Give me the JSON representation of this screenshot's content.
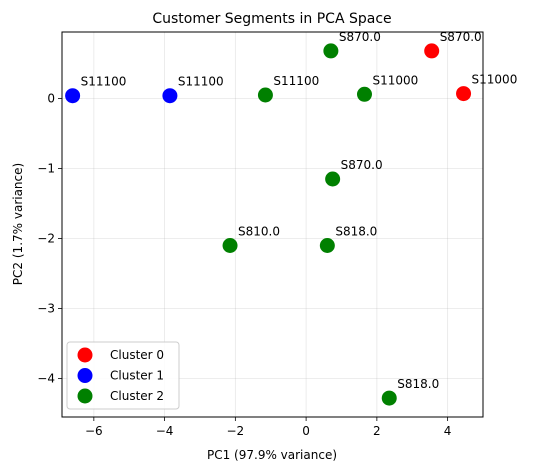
{
  "chart_data": {
    "type": "scatter",
    "title": "Customer Segments in PCA Space",
    "xlabel": "PC1 (97.9% variance)",
    "ylabel": "PC2 (1.7% variance)",
    "xlim": [
      -6.9,
      5.0
    ],
    "ylim": [
      -4.55,
      0.95
    ],
    "xticks": [
      -6,
      -4,
      -2,
      0,
      2,
      4
    ],
    "yticks": [
      0,
      -1,
      -2,
      -3,
      -4
    ],
    "xtick_labels": [
      "−6",
      "−4",
      "−2",
      "0",
      "2",
      "4"
    ],
    "ytick_labels": [
      "0",
      "−1",
      "−2",
      "−3",
      "−4"
    ],
    "grid": true,
    "legend": "lower-left",
    "series": [
      {
        "name": "Cluster 0",
        "color": "#ff0000",
        "points": [
          {
            "x": 3.55,
            "y": 0.68,
            "label": "S870.0"
          },
          {
            "x": 4.45,
            "y": 0.07,
            "label": "S11000"
          }
        ]
      },
      {
        "name": "Cluster 1",
        "color": "#0000ff",
        "points": [
          {
            "x": -6.6,
            "y": 0.04,
            "label": "S11100"
          },
          {
            "x": -3.85,
            "y": 0.04,
            "label": "S11100"
          }
        ]
      },
      {
        "name": "Cluster 2",
        "color": "#008000",
        "points": [
          {
            "x": -1.15,
            "y": 0.05,
            "label": "S11100"
          },
          {
            "x": 1.65,
            "y": 0.06,
            "label": "S11000"
          },
          {
            "x": 0.7,
            "y": 0.68,
            "label": "S870.0"
          },
          {
            "x": 0.75,
            "y": -1.15,
            "label": "S870.0"
          },
          {
            "x": -2.15,
            "y": -2.1,
            "label": "S810.0"
          },
          {
            "x": 0.6,
            "y": -2.1,
            "label": "S818.0"
          },
          {
            "x": 2.35,
            "y": -4.28,
            "label": "S818.0"
          }
        ]
      }
    ]
  }
}
